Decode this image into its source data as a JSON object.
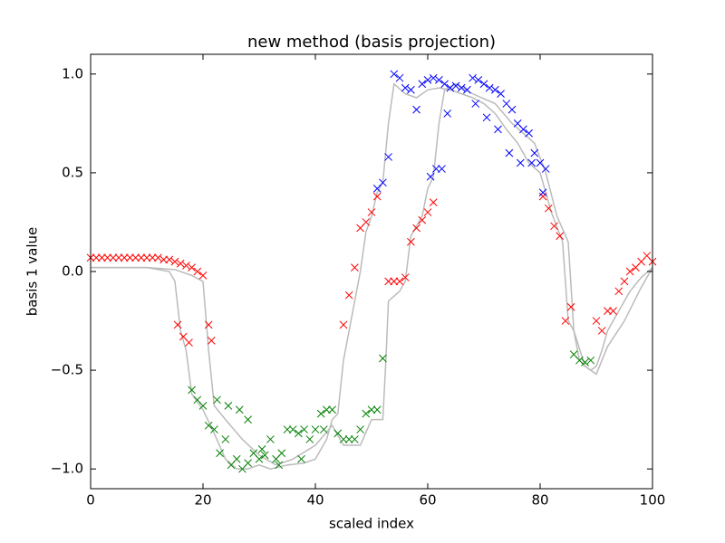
{
  "chart_data": {
    "type": "scatter",
    "title": "new method (basis projection)",
    "x_label": "scaled index",
    "y_label": "basis 1 value",
    "xlim": [
      0,
      100
    ],
    "ylim": [
      -1.1,
      1.1
    ],
    "xticks": [
      0,
      20,
      40,
      60,
      80,
      100
    ],
    "yticks": [
      {
        "value": -1.0,
        "label": "−1.0"
      },
      {
        "value": -0.5,
        "label": "−0.5"
      },
      {
        "value": 0.0,
        "label": "0.0"
      },
      0.5,
      {
        "value": 1.0,
        "label": "1.0"
      }
    ],
    "series": [
      {
        "style": "line",
        "color": "#bbbbbb",
        "x": [
          0,
          5,
          10,
          14,
          15,
          16,
          17,
          18,
          20,
          22,
          24,
          26,
          28,
          30,
          32,
          35,
          38,
          40,
          42,
          43,
          44,
          45,
          46,
          47,
          48,
          49,
          50,
          51,
          52,
          53,
          54,
          56,
          58,
          60,
          62,
          64,
          66,
          68,
          70,
          72,
          74,
          76,
          78,
          80,
          82,
          84,
          85,
          86,
          87,
          88,
          89,
          90,
          91,
          92,
          94,
          96,
          98,
          100
        ],
        "values": [
          0.02,
          0.02,
          0.02,
          0.0,
          -0.05,
          -0.3,
          -0.4,
          -0.62,
          -0.7,
          -0.82,
          -0.95,
          -1.0,
          -1.0,
          -0.98,
          -1.0,
          -0.98,
          -0.97,
          -0.95,
          -0.85,
          -0.75,
          -0.72,
          -0.45,
          -0.3,
          -0.15,
          0.0,
          0.2,
          0.28,
          0.4,
          0.45,
          0.75,
          0.95,
          0.9,
          0.88,
          0.92,
          0.93,
          0.92,
          0.9,
          0.88,
          0.85,
          0.8,
          0.72,
          0.65,
          0.55,
          0.5,
          0.3,
          0.15,
          -0.25,
          -0.3,
          -0.45,
          -0.48,
          -0.5,
          -0.48,
          -0.4,
          -0.3,
          -0.2,
          -0.1,
          -0.03,
          0.02
        ]
      },
      {
        "style": "line",
        "color": "#bbbbbb",
        "x": [
          0,
          5,
          10,
          15,
          18,
          20,
          21,
          22,
          24,
          27,
          30,
          33,
          36,
          40,
          43,
          45,
          48,
          50,
          52,
          52.5,
          53,
          55,
          56,
          57,
          59,
          60,
          61,
          62,
          63,
          65,
          68,
          72,
          75,
          79,
          81,
          83,
          85,
          86,
          88,
          90,
          92,
          95,
          98,
          100
        ],
        "values": [
          0.02,
          0.02,
          0.02,
          0.01,
          -0.02,
          -0.05,
          -0.4,
          -0.68,
          -0.75,
          -0.85,
          -0.93,
          -0.98,
          -0.95,
          -0.88,
          -0.78,
          -0.88,
          -0.88,
          -0.75,
          -0.75,
          -0.48,
          -0.15,
          -0.1,
          -0.05,
          0.18,
          0.28,
          0.42,
          0.48,
          0.75,
          0.92,
          0.95,
          0.9,
          0.85,
          0.75,
          0.65,
          0.5,
          0.28,
          0.15,
          -0.3,
          -0.48,
          -0.52,
          -0.38,
          -0.25,
          -0.08,
          0.02
        ]
      },
      {
        "style": "marker",
        "color": "#ff0000",
        "x": [
          0,
          1,
          2,
          3,
          4,
          5,
          6,
          7,
          8,
          9,
          10,
          11,
          12,
          13,
          14,
          15,
          16,
          17,
          18,
          19,
          20,
          15.5,
          16.5,
          17.5,
          21,
          21.5,
          45,
          46,
          47,
          48,
          49,
          50,
          51,
          53,
          54,
          55,
          56,
          57,
          58,
          59,
          60,
          61,
          80.5,
          81.5,
          82.5,
          83.5,
          84.5,
          85.5,
          90,
          91,
          92,
          93,
          94,
          95,
          96,
          97,
          98,
          99,
          100
        ],
        "values": [
          0.07,
          0.07,
          0.07,
          0.07,
          0.07,
          0.07,
          0.07,
          0.07,
          0.07,
          0.07,
          0.07,
          0.07,
          0.07,
          0.06,
          0.06,
          0.05,
          0.04,
          0.03,
          0.02,
          0.0,
          -0.02,
          -0.27,
          -0.33,
          -0.36,
          -0.27,
          -0.35,
          -0.27,
          -0.12,
          0.02,
          0.22,
          0.25,
          0.3,
          0.38,
          -0.05,
          -0.05,
          -0.05,
          -0.03,
          0.15,
          0.22,
          0.26,
          0.3,
          0.35,
          0.38,
          0.32,
          0.23,
          0.18,
          -0.25,
          -0.18,
          -0.25,
          -0.3,
          -0.2,
          -0.2,
          -0.1,
          -0.05,
          0.0,
          0.02,
          0.05,
          0.08,
          0.05
        ]
      },
      {
        "style": "marker",
        "color": "#008000",
        "x": [
          18,
          19,
          20,
          21,
          22,
          23,
          24,
          25,
          26,
          27,
          28,
          29,
          30,
          31,
          32,
          33,
          34,
          35,
          36,
          37,
          38,
          39,
          40,
          41,
          42,
          43,
          44,
          45,
          46,
          47,
          48,
          49,
          50,
          51,
          52,
          86,
          87,
          88,
          89,
          22.5,
          24.5,
          26.5,
          28,
          30.5,
          33.5,
          37.5,
          41.5
        ],
        "values": [
          -0.6,
          -0.65,
          -0.68,
          -0.78,
          -0.8,
          -0.92,
          -0.85,
          -0.98,
          -0.95,
          -1.0,
          -0.97,
          -0.92,
          -0.95,
          -0.93,
          -0.85,
          -0.95,
          -0.92,
          -0.8,
          -0.8,
          -0.82,
          -0.8,
          -0.85,
          -0.8,
          -0.72,
          -0.7,
          -0.7,
          -0.82,
          -0.85,
          -0.85,
          -0.85,
          -0.8,
          -0.72,
          -0.7,
          -0.7,
          -0.44,
          -0.42,
          -0.45,
          -0.46,
          -0.45,
          -0.65,
          -0.68,
          -0.7,
          -0.75,
          -0.9,
          -0.98,
          -0.95,
          -0.8
        ]
      },
      {
        "style": "marker",
        "color": "#0000ff",
        "x": [
          51,
          52,
          53,
          54,
          55,
          56,
          57,
          58,
          59,
          60,
          61,
          62,
          63,
          64,
          65,
          66,
          67,
          68,
          69,
          70,
          71,
          72,
          73,
          74,
          75,
          76,
          77,
          78,
          79,
          80,
          81,
          60.5,
          61.5,
          62.5,
          63.5,
          68.5,
          70.5,
          72.5,
          74.5,
          76.5,
          78.5,
          80.5
        ],
        "values": [
          0.42,
          0.45,
          0.58,
          1.0,
          0.98,
          0.93,
          0.92,
          0.82,
          0.95,
          0.97,
          0.98,
          0.97,
          0.95,
          0.93,
          0.94,
          0.93,
          0.92,
          0.98,
          0.97,
          0.95,
          0.93,
          0.92,
          0.9,
          0.85,
          0.82,
          0.75,
          0.72,
          0.7,
          0.6,
          0.55,
          0.52,
          0.48,
          0.52,
          0.52,
          0.8,
          0.85,
          0.78,
          0.72,
          0.6,
          0.55,
          0.55,
          0.4
        ]
      }
    ]
  }
}
